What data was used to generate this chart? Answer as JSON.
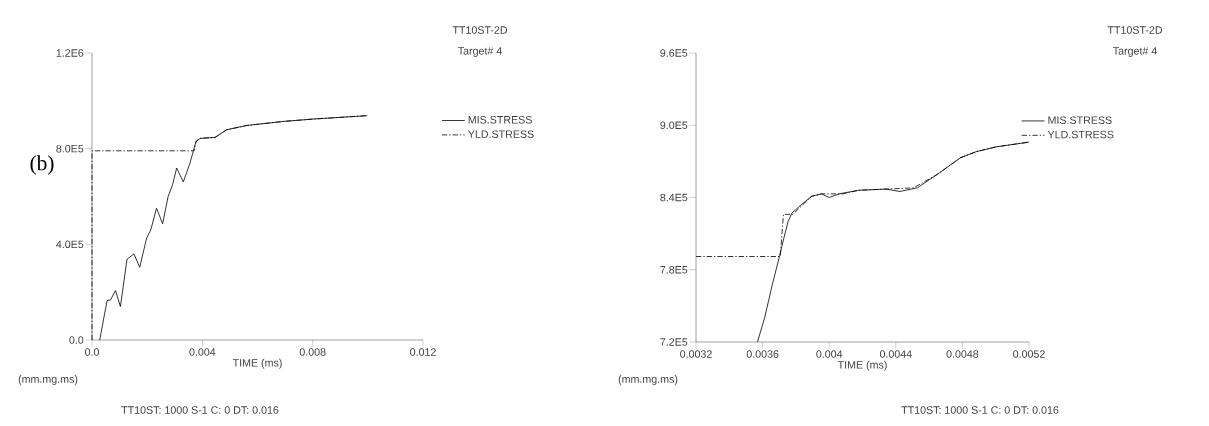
{
  "chart_data": [
    {
      "type": "line",
      "xlabel": "TIME (ms)",
      "legend": "right",
      "annotations": [
        "TT10ST-2D",
        "Target# 4",
        "(b)",
        "(mm.mg.ms)",
        "TT10ST: 1000 S-1  C: 0     DT: 0.016"
      ],
      "xlim": [
        0,
        0.012
      ],
      "ylim": [
        0,
        1200000
      ],
      "xticks": [
        {
          "value": 0,
          "label": "0.0"
        },
        0.004,
        0.008,
        0.012
      ],
      "yticks": [
        {
          "value": 0,
          "label": "0.0"
        },
        {
          "value": 400000,
          "label": "4.0E5"
        },
        {
          "value": 800000,
          "label": "8.0E5"
        },
        {
          "value": 1200000,
          "label": "1.2E6"
        }
      ],
      "series": [
        {
          "name": "MIS.STRESS",
          "color": "#000000",
          "line_style": "solid",
          "x": [
            0.00028,
            0.00046,
            0.00055,
            0.00067,
            0.00085,
            0.00103,
            0.00127,
            0.00152,
            0.00173,
            0.00198,
            0.00213,
            0.00234,
            0.00256,
            0.00276,
            0.00292,
            0.00307,
            0.00331,
            0.00355,
            0.00377,
            0.00392,
            0.00446,
            0.00488,
            0.00561,
            0.00695,
            0.00804,
            0.00998
          ],
          "values": [
            0,
            112000,
            165000,
            167000,
            207000,
            140000,
            338000,
            360000,
            304000,
            426000,
            460000,
            551000,
            486000,
            600000,
            649000,
            719000,
            661000,
            739000,
            830000,
            843000,
            847000,
            879000,
            897000,
            914000,
            924000,
            938000
          ]
        },
        {
          "name": "YLD.STRESS",
          "color": "#000000",
          "line_style": "dashdotted",
          "x": [
            0,
            0,
            0.0037,
            0.00377,
            0.00392,
            0.00446,
            0.00488,
            0.00561,
            0.00695,
            0.00804,
            0.00998
          ],
          "values": [
            0,
            791000,
            791000,
            830000,
            843000,
            847000,
            879000,
            897000,
            914000,
            924000,
            938000
          ]
        }
      ]
    },
    {
      "type": "line",
      "xlabel": "TIME (ms)",
      "legend": "right",
      "annotations": [
        "TT10ST-2D",
        "Target# 4",
        "(mm.mg.ms)",
        "TT10ST: 1000 S-1  C: 0     DT: 0.016"
      ],
      "xlim": [
        0.0032,
        0.0052
      ],
      "ylim": [
        720000,
        960000
      ],
      "xticks": [
        0.0032,
        0.0036,
        0.004,
        0.0044,
        0.0048,
        0.0052
      ],
      "yticks": [
        {
          "value": 720000,
          "label": "7.2E5"
        },
        {
          "value": 780000,
          "label": "7.8E5"
        },
        {
          "value": 840000,
          "label": "8.4E5"
        },
        {
          "value": 900000,
          "label": "9.0E5"
        },
        {
          "value": 960000,
          "label": "9.6E5"
        }
      ],
      "series": [
        {
          "name": "MIS.STRESS",
          "color": "#000000",
          "line_style": "solid",
          "x": [
            0.003569,
            0.003612,
            0.003659,
            0.003701,
            0.003729,
            0.003753,
            0.003776,
            0.003824,
            0.003894,
            0.003953,
            0.004,
            0.004059,
            0.004176,
            0.004341,
            0.004424,
            0.004529,
            0.004647,
            0.004788,
            0.004882,
            0.005,
            0.0052
          ],
          "values": [
            720000,
            740000,
            768000,
            791000,
            807000,
            820000,
            827000,
            833000,
            841000,
            843000,
            840000,
            843000,
            846000,
            847000,
            845000,
            848000,
            859000,
            873000,
            878000,
            882000,
            886000
          ]
        },
        {
          "name": "YLD.STRESS",
          "color": "#000000",
          "line_style": "dashdotted",
          "x": [
            0.0032,
            0.003706,
            0.003725,
            0.003781,
            0.003894,
            0.003953,
            0.004082,
            0.004176,
            0.004341,
            0.004506,
            0.004647,
            0.004788,
            0.004882,
            0.005,
            0.0052
          ],
          "values": [
            791000,
            791000,
            826000,
            826000,
            841000,
            843000,
            843000,
            846000,
            847000,
            848000,
            859000,
            873000,
            878000,
            882000,
            886000
          ]
        }
      ]
    }
  ]
}
